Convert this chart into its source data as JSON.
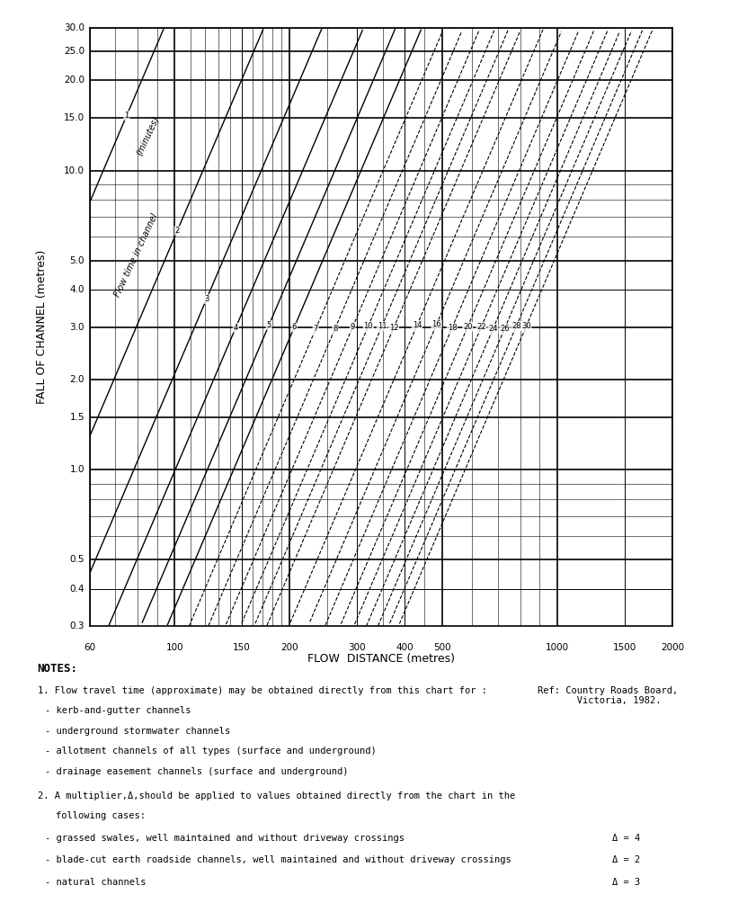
{
  "title": "",
  "xlabel": "FLOW  DISTANCE (metres)",
  "ylabel": "FALL OF CHANNEL (metres)",
  "x_ticks": [
    60,
    100,
    150,
    200,
    300,
    400,
    500,
    1000,
    1500,
    2000
  ],
  "x_tick_labels": [
    "60",
    "100",
    "150",
    "200",
    "300",
    "400",
    "500",
    "1000",
    "1500",
    "2000"
  ],
  "y_ticks": [
    0.3,
    0.4,
    0.5,
    1.0,
    1.5,
    2.0,
    3.0,
    4.0,
    5.0,
    10.0,
    15.0,
    20.0,
    25.0,
    30.0
  ],
  "y_tick_labels": [
    "0.3",
    "0.4",
    "0.5",
    "1.0",
    "1.5",
    "2.0",
    "3.0",
    "4.0",
    "5.0",
    "10.0",
    "15.0",
    "20.0",
    "25.0",
    "30.0"
  ],
  "xlim": [
    60,
    2000
  ],
  "ylim": [
    0.3,
    30.0
  ],
  "flow_times": [
    1,
    2,
    3,
    4,
    5,
    6,
    7,
    8,
    9,
    10,
    11,
    12,
    14,
    16,
    18,
    20,
    22,
    24,
    26,
    28,
    30
  ],
  "notes_title": "NOTES:",
  "note1": "1. Flow travel time (approximate) may be obtained directly from this chart for :",
  "note1_items": [
    "- kerb-and-gutter channels",
    "- underground stormwater channels",
    "- allotment channels of all types (surface and underground)",
    "- drainage easement channels (surface and underground)"
  ],
  "note2": "2. A multiplier, Δ, should be applied to values obtained directly from the chart in the\n   following cases:",
  "note2_items": [
    "- grassed swales, well maintained and without driveway crossings",
    "- blade-cut earth roadside channels, well maintained and without driveway crossings",
    "- natural channels"
  ],
  "note2_deltas": [
    "Δ = 4",
    "Δ = 2",
    "Δ = 3"
  ],
  "ref": "Ref: Country Roads Board,\n       Victoria, 1982.",
  "flow_label": "Flow time in channel",
  "flow_label2": "(minutes)",
  "bg_color": "#ffffff",
  "line_color": "#000000"
}
